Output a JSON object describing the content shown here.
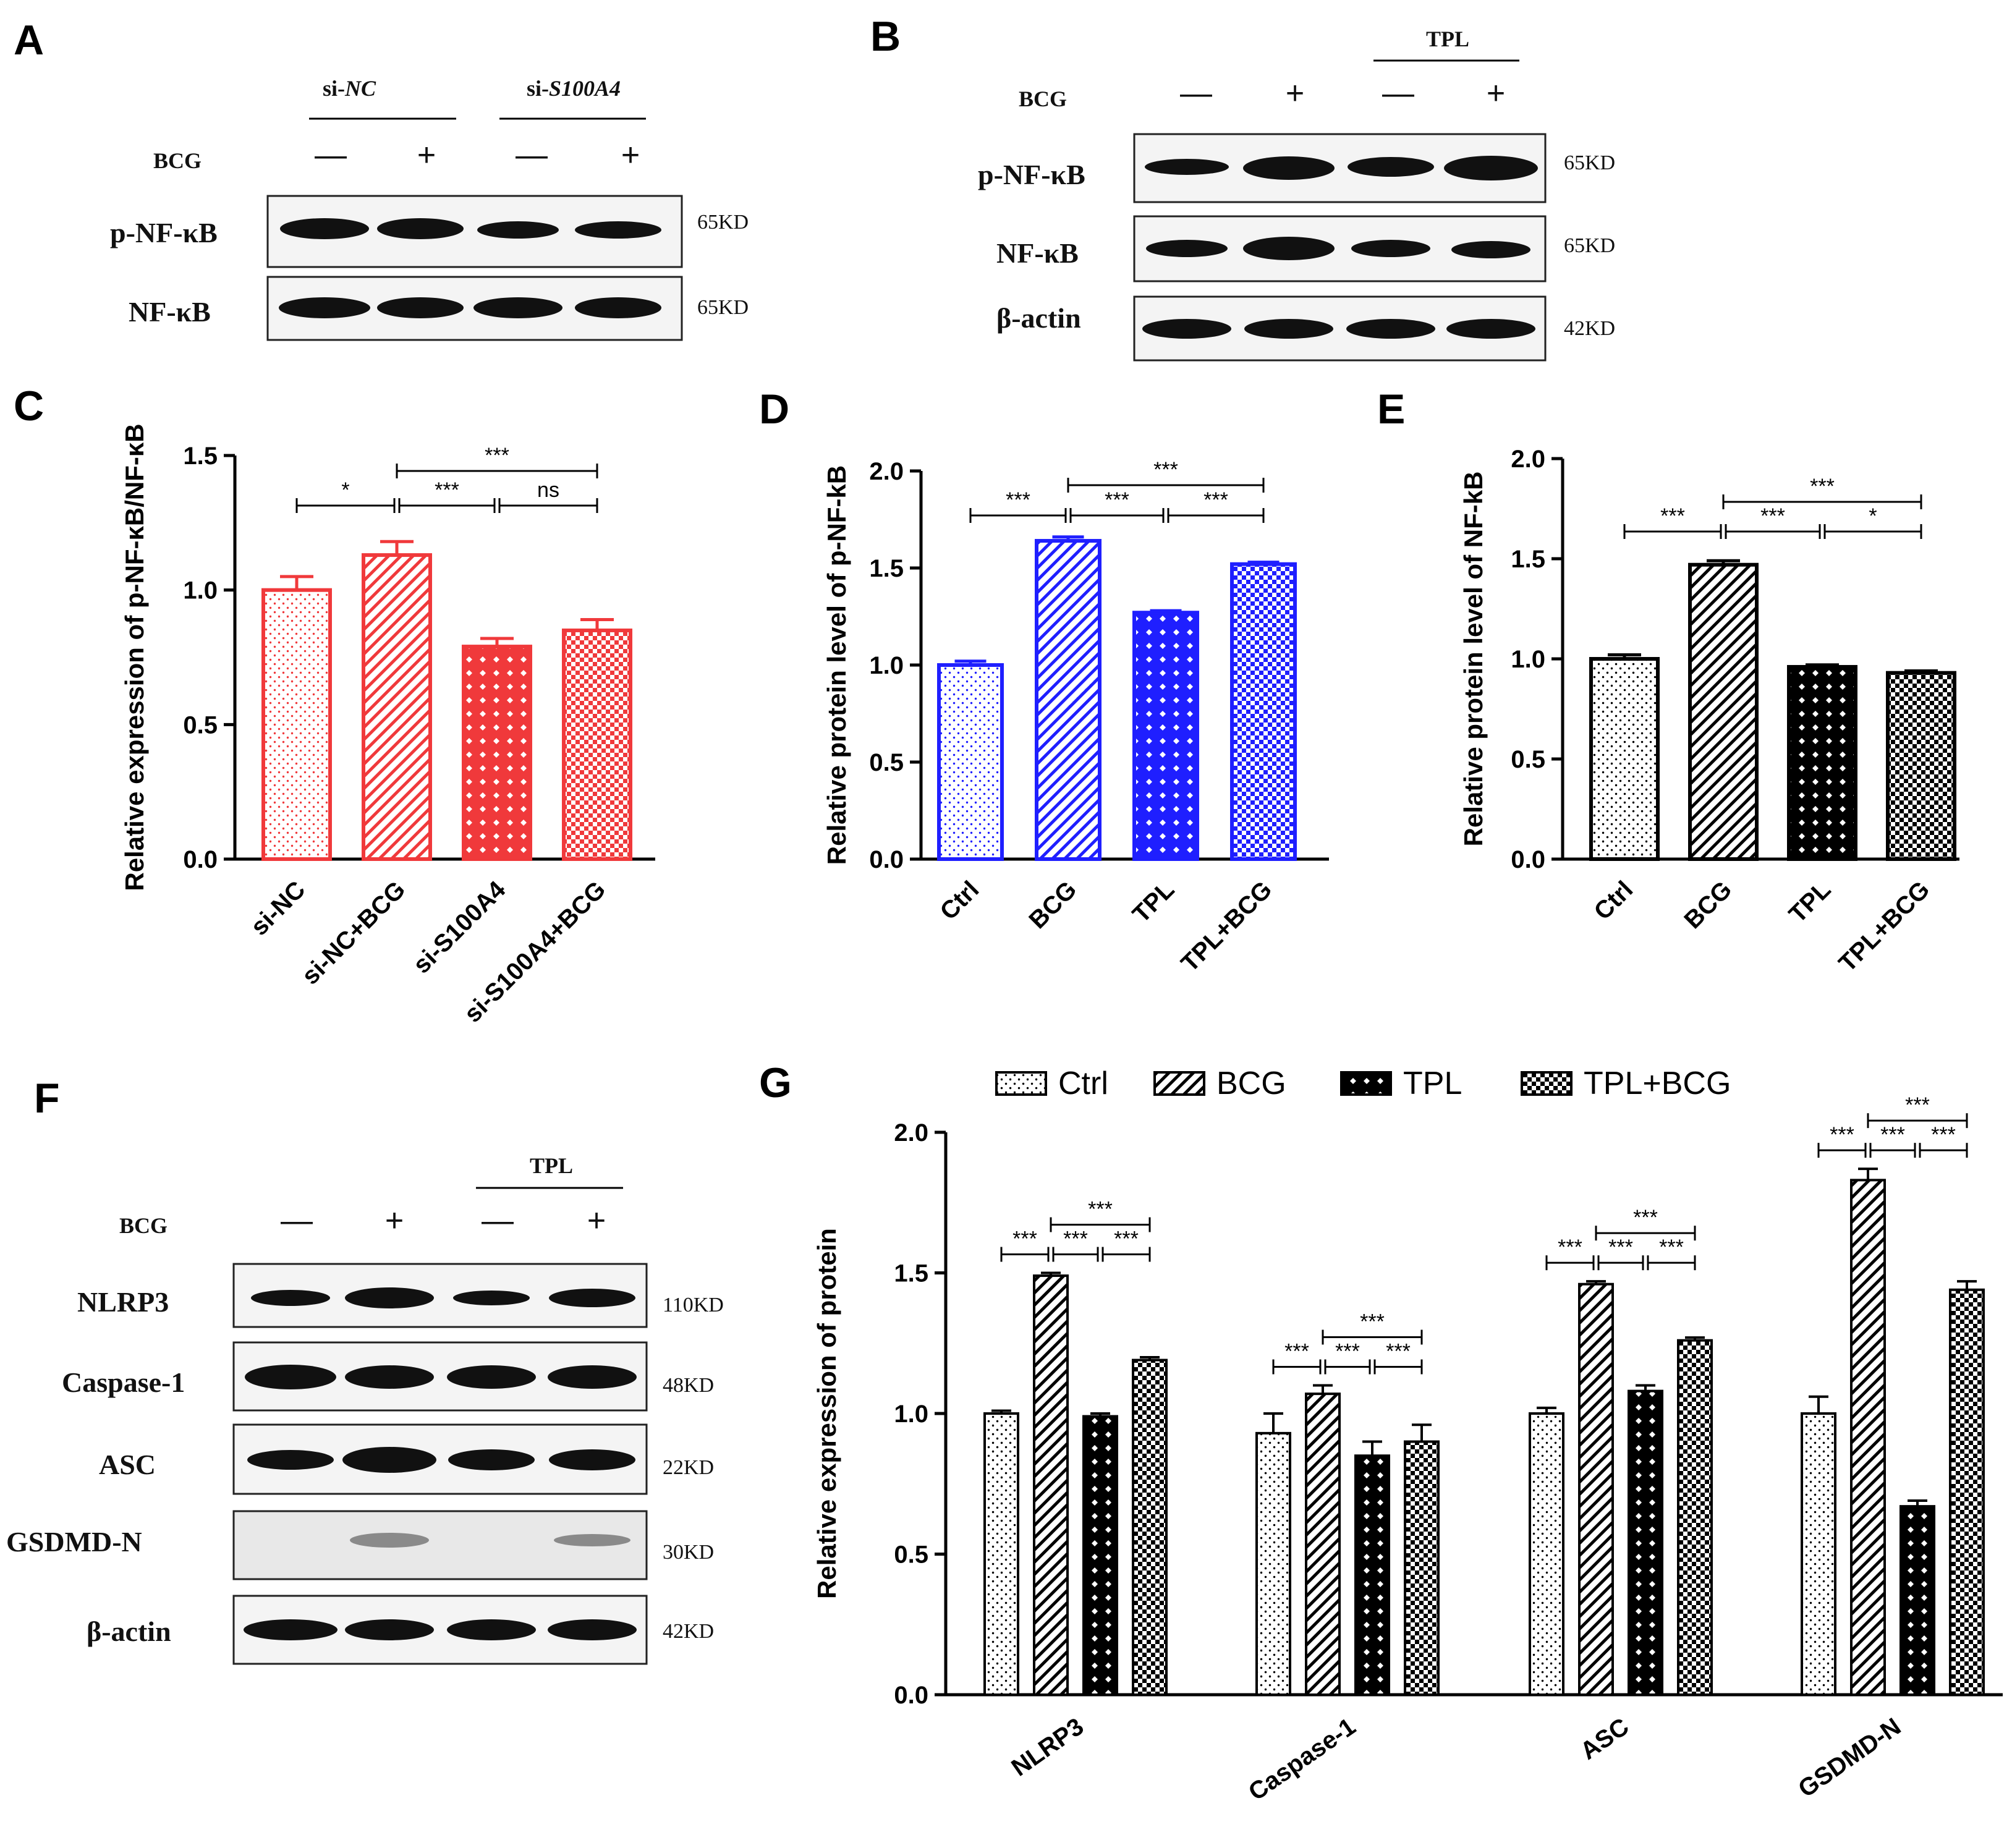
{
  "panel_letters": {
    "a": "A",
    "b": "B",
    "c": "C",
    "d": "D",
    "e": "E",
    "f": "F",
    "g": "G"
  },
  "blot_a": {
    "group1": "si-",
    "group1_italic": "NC",
    "group2": "si-",
    "group2_italic": "S100A4",
    "bcg_label": "BCG",
    "signs": [
      "—",
      "+",
      "—",
      "+"
    ],
    "rows": [
      {
        "label": "p-NF-κB",
        "kd": "65KD"
      },
      {
        "label": "NF-κB",
        "kd": "65KD"
      }
    ]
  },
  "blot_b": {
    "tpl_label": "TPL",
    "bcg_label": "BCG",
    "signs": [
      "—",
      "+",
      "—",
      "+"
    ],
    "rows": [
      {
        "label": "p-NF-κB",
        "kd": "65KD"
      },
      {
        "label": "NF-κB",
        "kd": "65KD"
      },
      {
        "label": "β-actin",
        "kd": "42KD"
      }
    ]
  },
  "blot_f": {
    "tpl_label": "TPL",
    "bcg_label": "BCG",
    "signs": [
      "—",
      "+",
      "—",
      "+"
    ],
    "rows": [
      {
        "label": "NLRP3",
        "kd": "110KD"
      },
      {
        "label": "Caspase-1",
        "kd": "48KD"
      },
      {
        "label": "ASC",
        "kd": "22KD"
      },
      {
        "label": "GSDMD-N",
        "kd": "30KD"
      },
      {
        "label": "β-actin",
        "kd": "42KD"
      }
    ]
  },
  "chart_data": [
    {
      "id": "C",
      "type": "bar",
      "ylabel": "Relative expression of p-NF-κB/NF-κB",
      "ylim": [
        0,
        1.5
      ],
      "yticks": [
        "0.0",
        "0.5",
        "1.0",
        "1.5"
      ],
      "categories": [
        "si-NC",
        "si-NC+BCG",
        "si-S100A4",
        "si-S100A4+BCG"
      ],
      "values": [
        1.0,
        1.13,
        0.79,
        0.85
      ],
      "errors": [
        0.05,
        0.05,
        0.03,
        0.04
      ],
      "color": "#f0393b",
      "patterns": [
        "dots",
        "diag",
        "diamond",
        "check"
      ],
      "significance": [
        {
          "from": 0,
          "to": 1,
          "label": "*",
          "level": 0
        },
        {
          "from": 1,
          "to": 2,
          "label": "***",
          "level": 0
        },
        {
          "from": 2,
          "to": 3,
          "label": "ns",
          "level": 0
        },
        {
          "from": 1,
          "to": 3,
          "label": "***",
          "level": 1
        }
      ]
    },
    {
      "id": "D",
      "type": "bar",
      "ylabel": "Relative protein level of p-NF-kB",
      "ylim": [
        0,
        2.0
      ],
      "yticks": [
        "0.0",
        "0.5",
        "1.0",
        "1.5",
        "2.0"
      ],
      "categories": [
        "Ctrl",
        "BCG",
        "TPL",
        "TPL+BCG"
      ],
      "values": [
        1.0,
        1.64,
        1.27,
        1.52
      ],
      "errors": [
        0.02,
        0.02,
        0.01,
        0.01
      ],
      "color": "#1f1fff",
      "patterns": [
        "dots",
        "diag",
        "diamond",
        "check"
      ],
      "significance": [
        {
          "from": 0,
          "to": 1,
          "label": "***",
          "level": 0
        },
        {
          "from": 1,
          "to": 2,
          "label": "***",
          "level": 0
        },
        {
          "from": 2,
          "to": 3,
          "label": "***",
          "level": 0
        },
        {
          "from": 1,
          "to": 3,
          "label": "***",
          "level": 1
        }
      ]
    },
    {
      "id": "E",
      "type": "bar",
      "ylabel": "Relative protein level of NF-kB",
      "ylim": [
        0,
        2.0
      ],
      "yticks": [
        "0.0",
        "0.5",
        "1.0",
        "1.5",
        "2.0"
      ],
      "categories": [
        "Ctrl",
        "BCG",
        "TPL",
        "TPL+BCG"
      ],
      "values": [
        1.0,
        1.47,
        0.96,
        0.93
      ],
      "errors": [
        0.02,
        0.02,
        0.01,
        0.01
      ],
      "color": "#000000",
      "patterns": [
        "dots",
        "diag",
        "diamond",
        "check"
      ],
      "significance": [
        {
          "from": 0,
          "to": 1,
          "label": "***",
          "level": 0
        },
        {
          "from": 1,
          "to": 2,
          "label": "***",
          "level": 0
        },
        {
          "from": 2,
          "to": 3,
          "label": "*",
          "level": 0
        },
        {
          "from": 1,
          "to": 3,
          "label": "***",
          "level": 1
        }
      ]
    },
    {
      "id": "G",
      "type": "grouped-bar",
      "ylabel": "Relative expression of protein",
      "ylim": [
        0,
        2.0
      ],
      "yticks": [
        "0.0",
        "0.5",
        "1.0",
        "1.5",
        "2.0"
      ],
      "categories": [
        "NLRP3",
        "Caspase-1",
        "ASC",
        "GSDMD-N"
      ],
      "series": [
        {
          "name": "Ctrl",
          "pattern": "dots",
          "values": [
            1.0,
            0.93,
            1.0,
            1.0
          ],
          "errors": [
            0.01,
            0.07,
            0.02,
            0.06
          ]
        },
        {
          "name": "BCG",
          "pattern": "diag",
          "values": [
            1.49,
            1.07,
            1.46,
            1.83
          ],
          "errors": [
            0.01,
            0.03,
            0.01,
            0.04
          ]
        },
        {
          "name": "TPL",
          "pattern": "diamond",
          "values": [
            0.99,
            0.85,
            1.08,
            0.67
          ],
          "errors": [
            0.01,
            0.05,
            0.02,
            0.02
          ]
        },
        {
          "name": "TPL+BCG",
          "pattern": "check",
          "values": [
            1.19,
            0.9,
            1.26,
            1.44
          ],
          "errors": [
            0.01,
            0.06,
            0.01,
            0.03
          ]
        }
      ],
      "legend": [
        "Ctrl",
        "BCG",
        "TPL",
        "TPL+BCG"
      ],
      "legend_position": "top",
      "significance": [
        {
          "group": 0,
          "from": 0,
          "to": 1,
          "label": "***",
          "level": 0
        },
        {
          "group": 0,
          "from": 1,
          "to": 2,
          "label": "***",
          "level": 0
        },
        {
          "group": 0,
          "from": 2,
          "to": 3,
          "label": "***",
          "level": 0
        },
        {
          "group": 0,
          "from": 1,
          "to": 3,
          "label": "***",
          "level": 1
        },
        {
          "group": 1,
          "from": 0,
          "to": 1,
          "label": "***",
          "level": 0
        },
        {
          "group": 1,
          "from": 1,
          "to": 2,
          "label": "***",
          "level": 0
        },
        {
          "group": 1,
          "from": 2,
          "to": 3,
          "label": "***",
          "level": 0
        },
        {
          "group": 1,
          "from": 1,
          "to": 3,
          "label": "***",
          "level": 1
        },
        {
          "group": 2,
          "from": 0,
          "to": 1,
          "label": "***",
          "level": 0
        },
        {
          "group": 2,
          "from": 1,
          "to": 2,
          "label": "***",
          "level": 0
        },
        {
          "group": 2,
          "from": 2,
          "to": 3,
          "label": "***",
          "level": 0
        },
        {
          "group": 2,
          "from": 1,
          "to": 3,
          "label": "***",
          "level": 1
        },
        {
          "group": 3,
          "from": 0,
          "to": 1,
          "label": "***",
          "level": 0
        },
        {
          "group": 3,
          "from": 1,
          "to": 2,
          "label": "***",
          "level": 0
        },
        {
          "group": 3,
          "from": 2,
          "to": 3,
          "label": "***",
          "level": 0
        },
        {
          "group": 3,
          "from": 1,
          "to": 3,
          "label": "***",
          "level": 1
        }
      ]
    }
  ]
}
